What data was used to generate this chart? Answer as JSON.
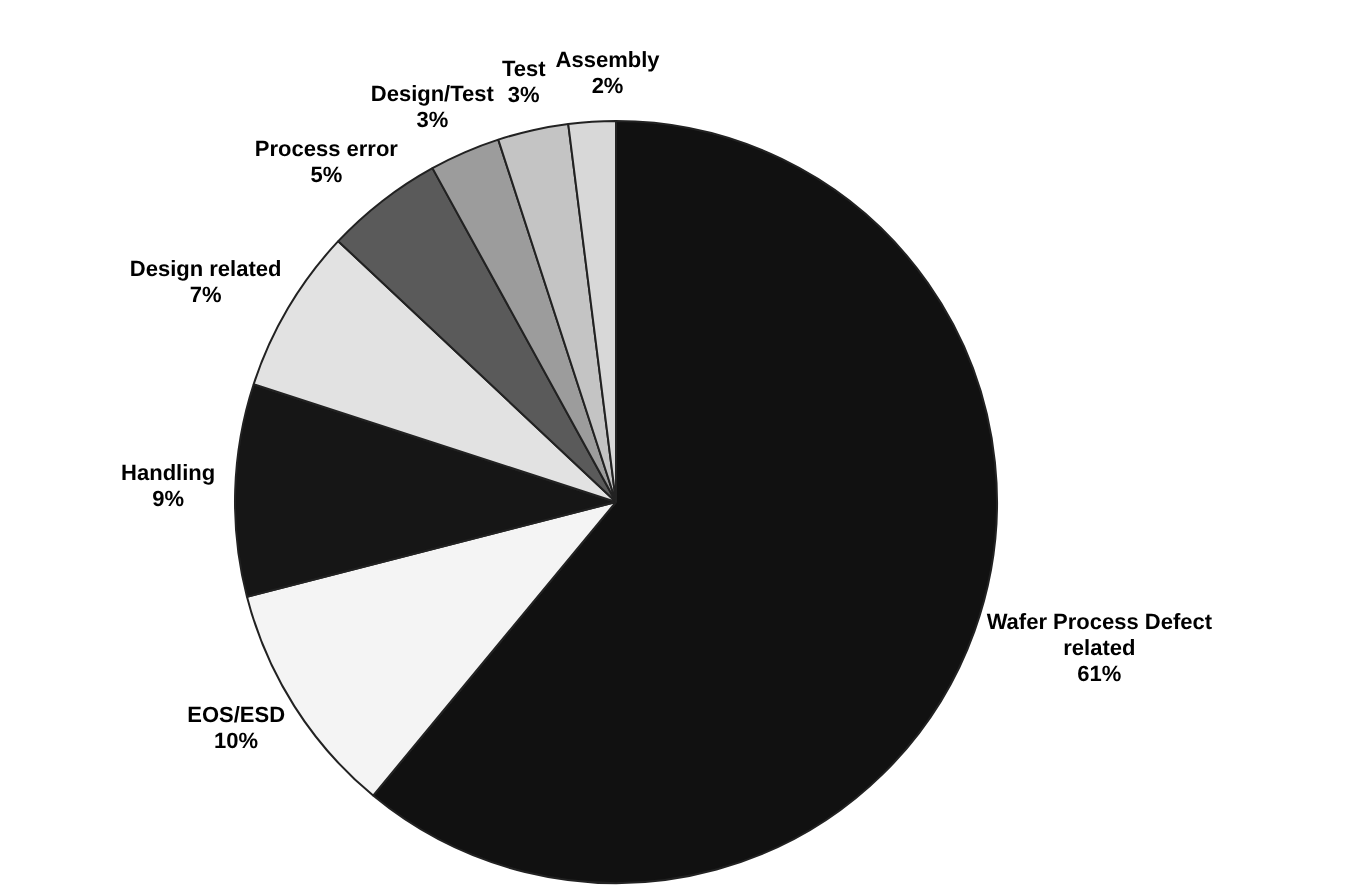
{
  "chart_data": {
    "type": "pie",
    "categories": [
      "Wafer Process Defect related",
      "EOS/ESD",
      "Handling",
      "Design related",
      "Process error",
      "Design/Test",
      "Test",
      "Assembly"
    ],
    "values": [
      61,
      10,
      9,
      7,
      5,
      3,
      3,
      2
    ],
    "colors": [
      "#111111",
      "#f4f4f4",
      "#161616",
      "#e2e2e2",
      "#5a5a5a",
      "#9c9c9c",
      "#c4c4c4",
      "#d8d8d8"
    ],
    "value_labels": [
      "61%",
      "10%",
      "9%",
      "7%",
      "5%",
      "3%",
      "3%",
      "2%"
    ]
  }
}
